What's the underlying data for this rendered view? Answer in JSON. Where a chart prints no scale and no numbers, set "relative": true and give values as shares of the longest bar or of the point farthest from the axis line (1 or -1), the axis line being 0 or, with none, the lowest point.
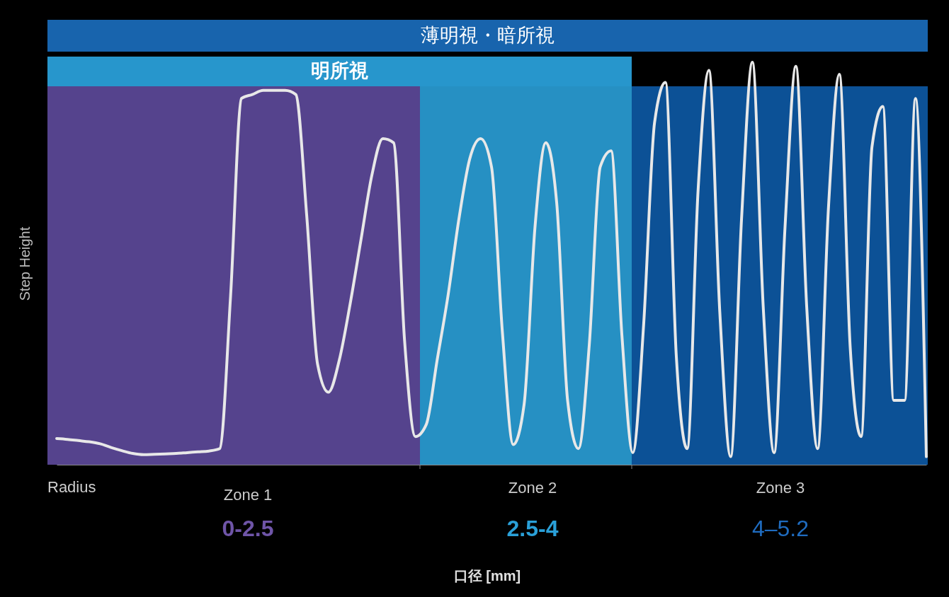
{
  "chart_data": {
    "type": "line",
    "relative": true,
    "ylabel": "Step Height",
    "grid": false,
    "marker": "none",
    "line_style": "solid",
    "categories": [
      null,
      null,
      null,
      null,
      null,
      null,
      null,
      null,
      null,
      null,
      null,
      null,
      null,
      null,
      null,
      null,
      null,
      null,
      null,
      null,
      null,
      null,
      null,
      null,
      null,
      null,
      null,
      null,
      null,
      null,
      null,
      null,
      null,
      null,
      null,
      null,
      null,
      null,
      null,
      null,
      null,
      null,
      null,
      null,
      null,
      null,
      null,
      null,
      null,
      null,
      null,
      null,
      null,
      null,
      null,
      null,
      null,
      null,
      null,
      null,
      null,
      null,
      null,
      null,
      null,
      null,
      null,
      null,
      null,
      null,
      null,
      null,
      null,
      null,
      null,
      null,
      null,
      null,
      null,
      null,
      null
    ],
    "series": [
      {
        "color": "#e8e8e8",
        "values": [
          0.065,
          0.063,
          0.06,
          0.057,
          0.052,
          0.043,
          0.035,
          0.028,
          0.025,
          0.026,
          0.027,
          0.028,
          0.03,
          0.032,
          0.034,
          0.04,
          0.42,
          0.91,
          0.92,
          0.93,
          0.93,
          0.93,
          0.92,
          0.62,
          0.25,
          0.18,
          0.26,
          0.4,
          0.56,
          0.72,
          0.81,
          0.8,
          0.31,
          0.07,
          0.1,
          0.26,
          0.42,
          0.61,
          0.76,
          0.81,
          0.74,
          0.33,
          0.05,
          0.15,
          0.59,
          0.8,
          0.65,
          0.16,
          0.04,
          0.3,
          0.74,
          0.78,
          0.32,
          0.03,
          0.35,
          0.85,
          0.95,
          0.27,
          0.04,
          0.68,
          0.98,
          0.38,
          0.02,
          0.61,
          1.0,
          0.39,
          0.03,
          0.59,
          0.99,
          0.39,
          0.04,
          0.64,
          0.97,
          0.29,
          0.07,
          0.79,
          0.89,
          0.16,
          0.16,
          0.91,
          0.02
        ]
      }
    ],
    "annotations": [
      "薄明視・暗所視",
      "明所視",
      "Zone 1",
      "Zone 2",
      "Zone 3",
      "Radius",
      "0-2.5",
      "2.5-4",
      "4–5.2",
      "口径 [mm]"
    ]
  }
}
